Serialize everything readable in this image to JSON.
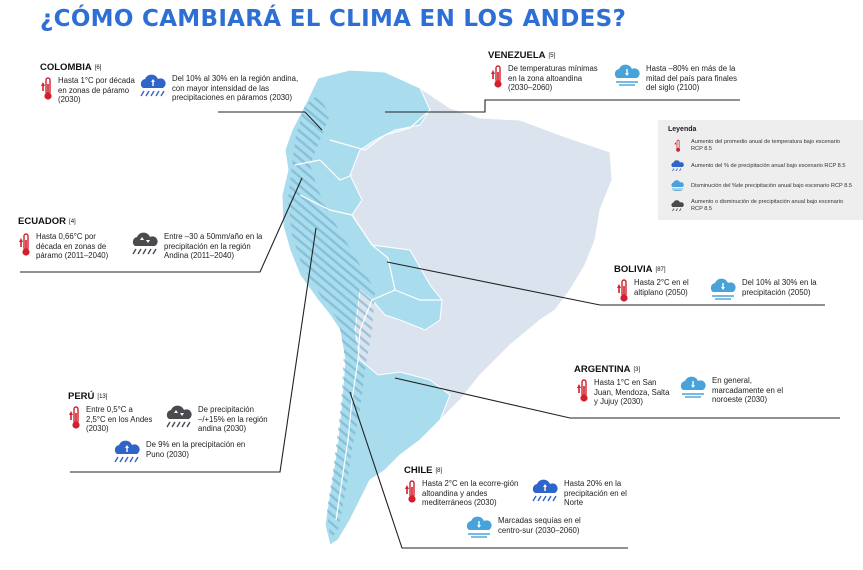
{
  "title": "¿CÓMO CAMBIARÁ EL CLIMA EN LOS ANDES?",
  "colors": {
    "title": "#2e6fd6",
    "andes": "#a9dcec",
    "other": "#dbe4ee",
    "border": "#ffffff",
    "temp": "#d21f2b",
    "cloud_blue": "#2f64c8",
    "cloud_light": "#47a3d9",
    "cloud_dark": "#4a4a4f"
  },
  "legend": {
    "title": "Leyenda",
    "items": [
      {
        "icon": "thermometer-icon",
        "text": "Aumento del promedio anual de temperatura bajo escenario RCP 8.5"
      },
      {
        "icon": "rain-increase-icon",
        "text": "Aumento del % de precipitación anual bajo escenario RCP 8.5"
      },
      {
        "icon": "rain-decrease-icon",
        "text": "Disminución del %de precipitación anual bajo escenario RCP 8.5"
      },
      {
        "icon": "rain-change-icon",
        "text": "Aumento o disminución de precipitación anual bajo escenario RCP 8.5"
      }
    ]
  },
  "countries": {
    "colombia": {
      "name": "COLOMBIA",
      "ref": "[6]",
      "temp": "Hasta 1°C por década en zonas de páramo (2030)",
      "precip": "Del 10% al 30% en la región andina, con mayor intensidad de las precipitaciones en páramos (2030)"
    },
    "venezuela": {
      "name": "VENEZUELA",
      "ref": "[5]",
      "temp": "De temperaturas mínimas en la zona altoandina (2030–2060)",
      "precip": "Hasta –80% en más de la mitad del país para finales del siglo (2100)"
    },
    "ecuador": {
      "name": "ECUADOR",
      "ref": "[4]",
      "temp": "Hasta 0,66°C por década en zonas de páramo (2011–2040)",
      "precip": "Entre –30 a 50mm/año en la precipitación en la región Andina (2011–2040)"
    },
    "bolivia": {
      "name": "BOLIVIA",
      "ref": "[87]",
      "temp": "Hasta 2°C en el altiplano (2050)",
      "precip": "Del 10% al 30% en la precipitación (2050)"
    },
    "argentina": {
      "name": "ARGENTINA",
      "ref": "[3]",
      "temp": "Hasta 1°C en San Juan, Mendoza, Salta y Jujuy (2030)",
      "precip": "En general, marcadamente en el noroeste (2030)"
    },
    "peru": {
      "name": "PERÚ",
      "ref": "[13]",
      "temp": "Entre 0,5°C a 2,5°C en los Andes (2030)",
      "precip": "De precipitación –/+15% en la región andina (2030)",
      "precip2": "De 9% en la precipitación en Puno (2030)"
    },
    "chile": {
      "name": "CHILE",
      "ref": "[8]",
      "temp": "Hasta 2°C en la ecorre-gión altoandina y andes mediterráneos (2030)",
      "precip": "Hasta 20% en la precipitación en el Norte",
      "precip2": "Marcadas sequías en el centro-sur (2030–2060)"
    }
  }
}
